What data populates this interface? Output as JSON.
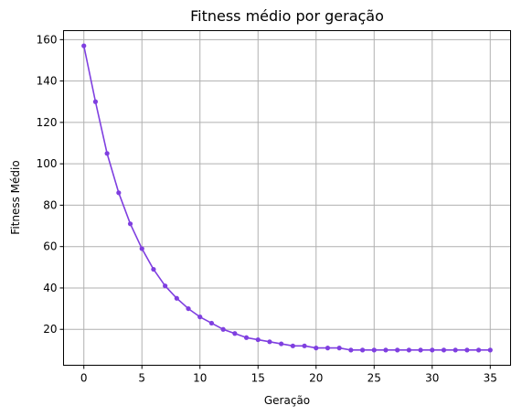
{
  "chart_data": {
    "type": "line",
    "title": "Fitness médio por geração",
    "xlabel": "Geração",
    "ylabel": "Fitness Médio",
    "xlim": [
      -1.75,
      36.75
    ],
    "ylim": [
      2.65,
      164.35
    ],
    "xticks": [
      0,
      5,
      10,
      15,
      20,
      25,
      30,
      35
    ],
    "yticks": [
      20,
      40,
      60,
      80,
      100,
      120,
      140,
      160
    ],
    "grid": true,
    "series": [
      {
        "color": "#7f3fe0",
        "marker": "circle",
        "x": [
          0,
          1,
          2,
          3,
          4,
          5,
          6,
          7,
          8,
          9,
          10,
          11,
          12,
          13,
          14,
          15,
          16,
          17,
          18,
          19,
          20,
          21,
          22,
          23,
          24,
          25,
          26,
          27,
          28,
          29,
          30,
          31,
          32,
          33,
          34,
          35
        ],
        "values": [
          157,
          130,
          105,
          86,
          71,
          59,
          49,
          41,
          35,
          30,
          26,
          23,
          20,
          18,
          16,
          15,
          14,
          13,
          12,
          12,
          11,
          11,
          11,
          10,
          10,
          10,
          10,
          10,
          10,
          10,
          10,
          10,
          10,
          10,
          10,
          10
        ]
      }
    ]
  }
}
